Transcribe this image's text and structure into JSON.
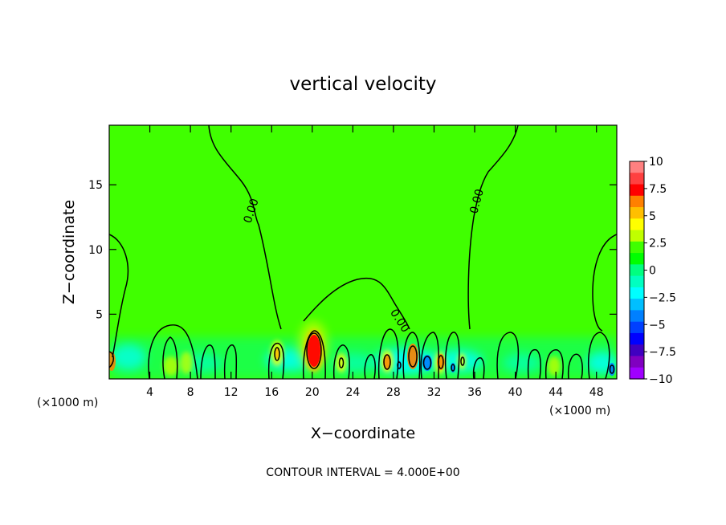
{
  "chart_data": {
    "type": "heatmap",
    "title": "vertical velocity",
    "xlabel": "X−coordinate",
    "ylabel": "Z−coordinate",
    "x_unit_left": "(×1000 m)",
    "x_unit_right": "(×1000 m)",
    "xlim": [
      0,
      50
    ],
    "ylim": [
      0,
      19.6
    ],
    "x_ticks": [
      4,
      8,
      12,
      16,
      20,
      24,
      28,
      32,
      36,
      40,
      44,
      48
    ],
    "x_tick_labels": [
      "4",
      "8",
      "12",
      "16",
      "20",
      "24",
      "28",
      "32",
      "36",
      "40",
      "44",
      "48"
    ],
    "y_ticks": [
      5,
      10,
      15
    ],
    "y_tick_labels": [
      "5",
      "10",
      "15"
    ],
    "colorbar": {
      "ticks": [
        10,
        7.5,
        5,
        2.5,
        0,
        -2.5,
        -5,
        -7.5,
        -10
      ],
      "tick_labels": [
        "10",
        "7.5",
        "5",
        "2.5",
        "0",
        "−2.5",
        "−5",
        "−7.5",
        "−10"
      ],
      "colors": [
        "#ff8080",
        "#ff4040",
        "#ff0000",
        "#ff8000",
        "#ffbf00",
        "#ffff00",
        "#c0ff00",
        "#40ff00",
        "#00ff00",
        "#00ff80",
        "#00ffc0",
        "#00ffff",
        "#00bfff",
        "#0080ff",
        "#0040ff",
        "#0000ff",
        "#4000c0",
        "#8000c0",
        "#a000ff"
      ]
    },
    "contour_labels": [
      "0.00",
      "0.00",
      "0.00"
    ],
    "background_color": "#40ff00",
    "contour_interval_text": "CONTOUR INTERVAL = 4.000E+00",
    "features": [
      {
        "name": "updraft",
        "x": 20.2,
        "z": 2.2,
        "value": 8.5
      },
      {
        "name": "updraft",
        "x": 29.8,
        "z": 1.8,
        "value": 5
      },
      {
        "name": "updraft",
        "x": 33.2,
        "z": 1.4,
        "value": 4
      },
      {
        "name": "downdraft",
        "x": 31.6,
        "z": 1.2,
        "value": -5
      },
      {
        "name": "downdraft",
        "x": 27.8,
        "z": 1.0,
        "value": -4
      },
      {
        "name": "downdraft",
        "x": 49.4,
        "z": 0.8,
        "value": -5
      },
      {
        "name": "updraft",
        "x": 0.5,
        "z": 1.6,
        "value": 5
      }
    ]
  }
}
